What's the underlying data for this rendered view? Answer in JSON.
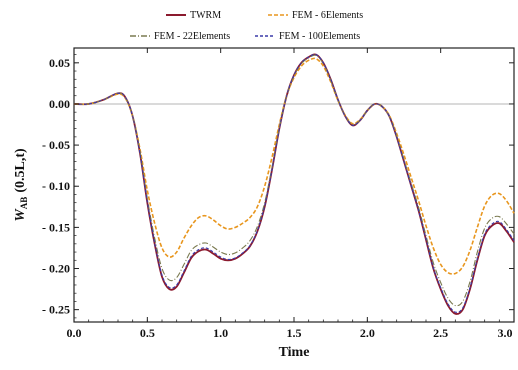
{
  "chart_data": {
    "type": "line",
    "title": "",
    "xlabel": "Time",
    "ylabel": {
      "main": "W",
      "sub": "AB",
      "args": "(0.5L,t)"
    },
    "xlim": [
      0,
      3.0
    ],
    "ylim": [
      -0.265,
      0.068
    ],
    "xticks": [
      0.0,
      0.5,
      1.0,
      1.5,
      2.0,
      2.5,
      3.0
    ],
    "xtick_labels": [
      "0.0",
      "0.5",
      "1.0",
      "1.5",
      "2.0",
      "2.5",
      "3.0"
    ],
    "yticks": [
      0.05,
      0.0,
      -0.05,
      -0.1,
      -0.15,
      -0.2,
      -0.25
    ],
    "ytick_labels": [
      "0.05",
      "0.00",
      "- 0.05",
      "- 0.10",
      "- 0.15",
      "- 0.20",
      "- 0.25"
    ],
    "grid": false,
    "zero_line": true,
    "legend_position": "top",
    "series": [
      {
        "name": "TWRM",
        "color": "#8b1a2e",
        "dash": "solid",
        "x": [
          0,
          0.1,
          0.2,
          0.3,
          0.35,
          0.4,
          0.45,
          0.5,
          0.55,
          0.6,
          0.65,
          0.7,
          0.75,
          0.8,
          0.85,
          0.9,
          0.95,
          1.0,
          1.05,
          1.1,
          1.15,
          1.2,
          1.25,
          1.3,
          1.35,
          1.4,
          1.45,
          1.5,
          1.55,
          1.6,
          1.65,
          1.7,
          1.75,
          1.8,
          1.85,
          1.9,
          1.95,
          2.0,
          2.05,
          2.1,
          2.15,
          2.2,
          2.25,
          2.3,
          2.35,
          2.4,
          2.45,
          2.5,
          2.55,
          2.6,
          2.65,
          2.7,
          2.75,
          2.8,
          2.85,
          2.9,
          2.95,
          3.0
        ],
        "y": [
          0,
          0,
          0.005,
          0.013,
          0.008,
          -0.015,
          -0.06,
          -0.12,
          -0.17,
          -0.21,
          -0.225,
          -0.222,
          -0.205,
          -0.187,
          -0.179,
          -0.177,
          -0.182,
          -0.188,
          -0.19,
          -0.188,
          -0.182,
          -0.173,
          -0.155,
          -0.125,
          -0.08,
          -0.03,
          0.01,
          0.035,
          0.05,
          0.057,
          0.06,
          0.05,
          0.03,
          0.005,
          -0.015,
          -0.026,
          -0.02,
          -0.008,
          0.0,
          -0.003,
          -0.015,
          -0.04,
          -0.07,
          -0.1,
          -0.13,
          -0.165,
          -0.2,
          -0.225,
          -0.245,
          -0.255,
          -0.25,
          -0.225,
          -0.19,
          -0.16,
          -0.148,
          -0.145,
          -0.155,
          -0.168
        ]
      },
      {
        "name": "FEM - 6Elements",
        "color": "#e8961e",
        "dash": "4,2",
        "x": [
          0,
          0.1,
          0.2,
          0.3,
          0.35,
          0.4,
          0.45,
          0.5,
          0.55,
          0.6,
          0.65,
          0.7,
          0.75,
          0.8,
          0.85,
          0.9,
          0.95,
          1.0,
          1.05,
          1.1,
          1.15,
          1.2,
          1.25,
          1.3,
          1.35,
          1.4,
          1.45,
          1.5,
          1.55,
          1.6,
          1.65,
          1.7,
          1.75,
          1.8,
          1.85,
          1.9,
          1.95,
          2.0,
          2.05,
          2.1,
          2.15,
          2.2,
          2.25,
          2.3,
          2.35,
          2.4,
          2.45,
          2.5,
          2.55,
          2.6,
          2.65,
          2.7,
          2.75,
          2.8,
          2.85,
          2.9,
          2.95,
          3.0
        ],
        "y": [
          0,
          0,
          0.005,
          0.012,
          0.007,
          -0.015,
          -0.055,
          -0.105,
          -0.145,
          -0.175,
          -0.186,
          -0.18,
          -0.163,
          -0.148,
          -0.138,
          -0.136,
          -0.141,
          -0.148,
          -0.152,
          -0.15,
          -0.145,
          -0.138,
          -0.125,
          -0.1,
          -0.065,
          -0.025,
          0.01,
          0.032,
          0.046,
          0.053,
          0.055,
          0.046,
          0.027,
          0.004,
          -0.014,
          -0.024,
          -0.019,
          -0.008,
          0.0,
          -0.003,
          -0.014,
          -0.036,
          -0.062,
          -0.09,
          -0.118,
          -0.148,
          -0.175,
          -0.195,
          -0.205,
          -0.206,
          -0.198,
          -0.178,
          -0.15,
          -0.124,
          -0.111,
          -0.109,
          -0.118,
          -0.133
        ]
      },
      {
        "name": "FEM - 22Elements",
        "color": "#7a7a50",
        "dash": "6,2,1,2",
        "x": [
          0,
          0.1,
          0.2,
          0.3,
          0.35,
          0.4,
          0.45,
          0.5,
          0.55,
          0.6,
          0.65,
          0.7,
          0.75,
          0.8,
          0.85,
          0.9,
          0.95,
          1.0,
          1.05,
          1.1,
          1.15,
          1.2,
          1.25,
          1.3,
          1.35,
          1.4,
          1.45,
          1.5,
          1.55,
          1.6,
          1.65,
          1.7,
          1.75,
          1.8,
          1.85,
          1.9,
          1.95,
          2.0,
          2.05,
          2.1,
          2.15,
          2.2,
          2.25,
          2.3,
          2.35,
          2.4,
          2.45,
          2.5,
          2.55,
          2.6,
          2.65,
          2.7,
          2.75,
          2.8,
          2.85,
          2.9,
          2.95,
          3.0
        ],
        "y": [
          0,
          0,
          0.005,
          0.013,
          0.008,
          -0.015,
          -0.058,
          -0.115,
          -0.163,
          -0.2,
          -0.214,
          -0.211,
          -0.195,
          -0.178,
          -0.171,
          -0.169,
          -0.174,
          -0.18,
          -0.183,
          -0.181,
          -0.175,
          -0.166,
          -0.149,
          -0.12,
          -0.077,
          -0.029,
          0.01,
          0.034,
          0.049,
          0.056,
          0.059,
          0.049,
          0.029,
          0.005,
          -0.015,
          -0.025,
          -0.02,
          -0.008,
          0.0,
          -0.003,
          -0.015,
          -0.039,
          -0.068,
          -0.097,
          -0.126,
          -0.16,
          -0.193,
          -0.217,
          -0.236,
          -0.245,
          -0.24,
          -0.216,
          -0.18,
          -0.151,
          -0.139,
          -0.137,
          -0.146,
          -0.158
        ]
      },
      {
        "name": "FEM - 100Elements",
        "color": "#3a3aa8",
        "dash": "3,2",
        "x": [
          0,
          0.1,
          0.2,
          0.3,
          0.35,
          0.4,
          0.45,
          0.5,
          0.55,
          0.6,
          0.65,
          0.7,
          0.75,
          0.8,
          0.85,
          0.9,
          0.95,
          1.0,
          1.05,
          1.1,
          1.15,
          1.2,
          1.25,
          1.3,
          1.35,
          1.4,
          1.45,
          1.5,
          1.55,
          1.6,
          1.65,
          1.7,
          1.75,
          1.8,
          1.85,
          1.9,
          1.95,
          2.0,
          2.05,
          2.1,
          2.15,
          2.2,
          2.25,
          2.3,
          2.35,
          2.4,
          2.45,
          2.5,
          2.55,
          2.6,
          2.65,
          2.7,
          2.75,
          2.8,
          2.85,
          2.9,
          2.95,
          3.0
        ],
        "y": [
          0,
          0,
          0.005,
          0.013,
          0.008,
          -0.015,
          -0.06,
          -0.119,
          -0.169,
          -0.208,
          -0.223,
          -0.22,
          -0.203,
          -0.185,
          -0.177,
          -0.175,
          -0.18,
          -0.186,
          -0.189,
          -0.187,
          -0.181,
          -0.172,
          -0.154,
          -0.124,
          -0.08,
          -0.03,
          0.01,
          0.035,
          0.05,
          0.057,
          0.06,
          0.05,
          0.03,
          0.005,
          -0.015,
          -0.026,
          -0.02,
          -0.008,
          0.0,
          -0.003,
          -0.015,
          -0.04,
          -0.07,
          -0.1,
          -0.13,
          -0.164,
          -0.199,
          -0.223,
          -0.243,
          -0.253,
          -0.248,
          -0.223,
          -0.188,
          -0.158,
          -0.146,
          -0.143,
          -0.153,
          -0.166
        ]
      }
    ]
  }
}
